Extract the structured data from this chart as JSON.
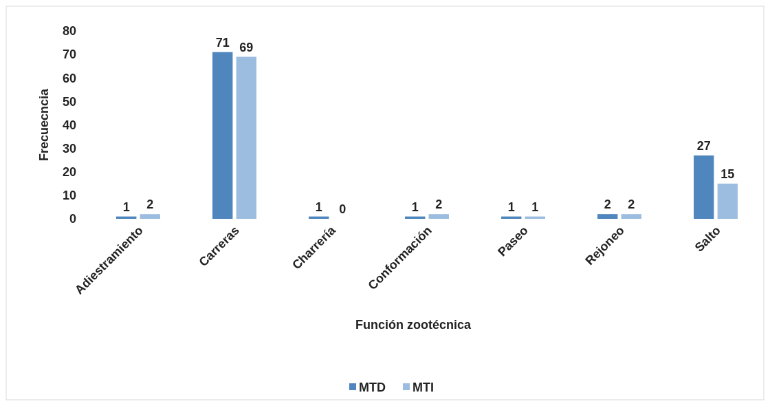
{
  "chart_data": {
    "type": "bar",
    "xlabel": "Función zootécnica",
    "ylabel": "Frecuecncia",
    "categories": [
      "Adiestramiento",
      "Carreras",
      "Charrería",
      "Conformación",
      "Paseo",
      "Rejoneo",
      "Salto"
    ],
    "series": [
      {
        "name": "MTD",
        "color": "#4f86bd",
        "values": [
          1,
          71,
          1,
          1,
          1,
          2,
          27
        ]
      },
      {
        "name": "MTI",
        "color": "#9dbde0",
        "values": [
          2,
          69,
          0,
          2,
          1,
          2,
          15
        ]
      }
    ],
    "ylim": [
      0,
      80
    ],
    "yticks": [
      0,
      10,
      20,
      30,
      40,
      50,
      60,
      70,
      80
    ],
    "grid": false,
    "legend": "bottom",
    "data_labels": true
  }
}
